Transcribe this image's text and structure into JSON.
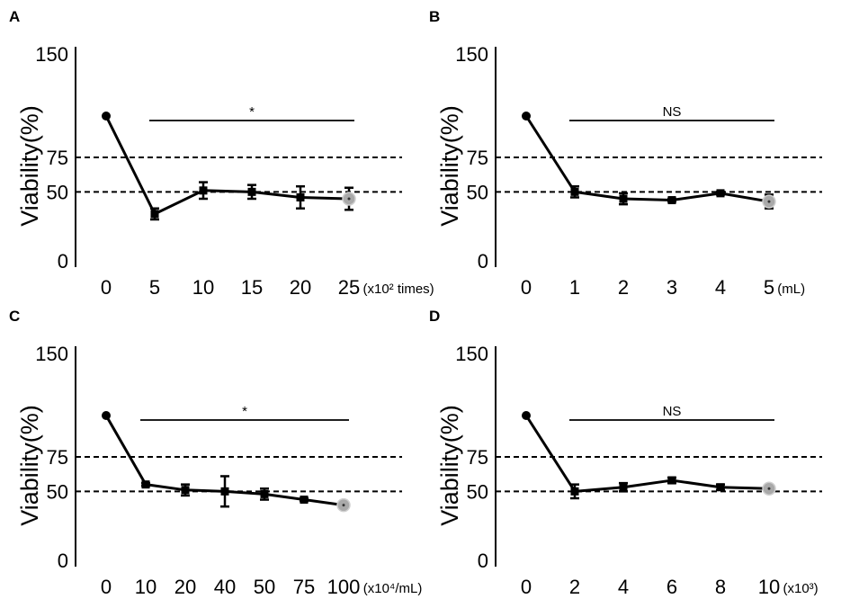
{
  "chart_data": [
    {
      "type": "line",
      "panel_label": "A",
      "ylabel": "Viability(%)",
      "unit_label": "(x10² times)",
      "categories": [
        "0",
        "5",
        "10",
        "15",
        "20",
        "25"
      ],
      "values": [
        105,
        34,
        51,
        50,
        46,
        45
      ],
      "errors": [
        0,
        4,
        6,
        5,
        8,
        8
      ],
      "yticks": [
        "0",
        "50",
        "75",
        "150"
      ],
      "ylim": [
        0,
        150
      ],
      "reference_lines": [
        75,
        50
      ],
      "significance": "*",
      "significance_span": [
        "5",
        "25"
      ],
      "highlight_last": true
    },
    {
      "type": "line",
      "panel_label": "B",
      "ylabel": "Viability(%)",
      "unit_label": "(mL)",
      "categories": [
        "0",
        "1",
        "2",
        "3",
        "4",
        "5"
      ],
      "values": [
        105,
        50,
        45,
        44,
        49,
        43
      ],
      "errors": [
        0,
        4,
        4,
        1,
        1,
        5
      ],
      "yticks": [
        "0",
        "50",
        "75",
        "150"
      ],
      "ylim": [
        0,
        150
      ],
      "reference_lines": [
        75,
        50
      ],
      "significance": "NS",
      "significance_span": [
        "1",
        "5"
      ],
      "highlight_last": true
    },
    {
      "type": "line",
      "panel_label": "C",
      "ylabel": "Viability(%)",
      "unit_label": "(x10⁴/mL)",
      "categories": [
        "0",
        "10",
        "20",
        "40",
        "50",
        "75",
        "100"
      ],
      "values": [
        105,
        55,
        51,
        50,
        48,
        44,
        40
      ],
      "errors": [
        0,
        1,
        4,
        11,
        4,
        1,
        2
      ],
      "yticks": [
        "0",
        "50",
        "75",
        "150"
      ],
      "ylim": [
        0,
        150
      ],
      "reference_lines": [
        75,
        50
      ],
      "significance": "*",
      "significance_span": [
        "10",
        "100"
      ],
      "highlight_last": true
    },
    {
      "type": "line",
      "panel_label": "D",
      "ylabel": "Viability(%)",
      "unit_label": "(x10³)",
      "categories": [
        "0",
        "2",
        "4",
        "6",
        "8",
        "10"
      ],
      "values": [
        105,
        50,
        53,
        58,
        53,
        52
      ],
      "errors": [
        0,
        5,
        3,
        2,
        2,
        1
      ],
      "yticks": [
        "0",
        "50",
        "75",
        "150"
      ],
      "ylim": [
        0,
        150
      ],
      "reference_lines": [
        75,
        50
      ],
      "significance": "NS",
      "significance_span": [
        "2",
        "10"
      ],
      "highlight_last": true
    }
  ]
}
